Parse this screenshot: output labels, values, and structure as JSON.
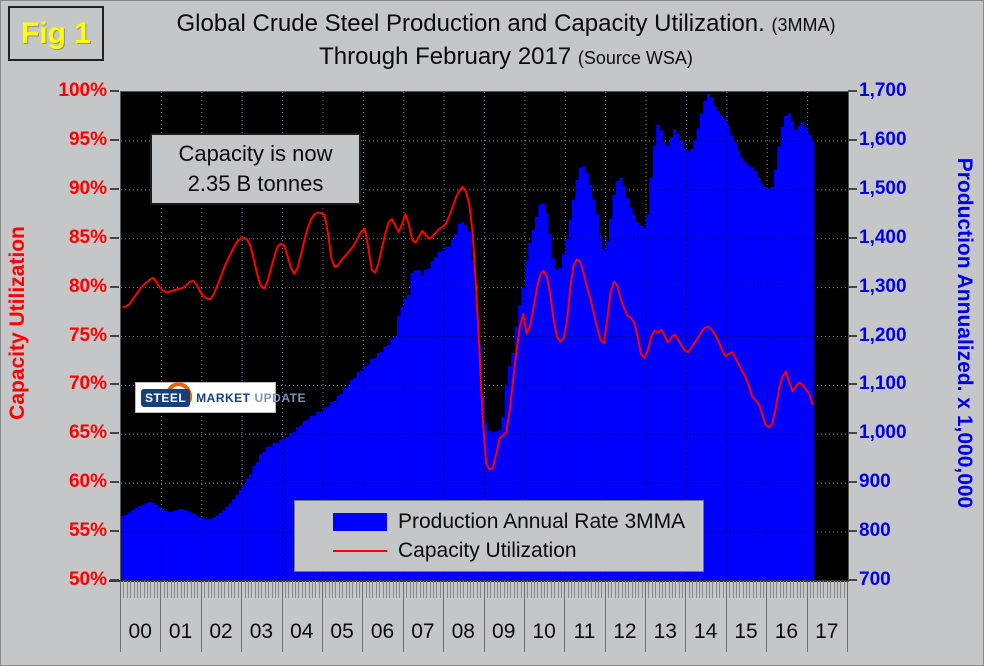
{
  "figure": {
    "badge": "Fig 1"
  },
  "title": {
    "line1": "Global Crude Steel Production and Capacity Utilization.",
    "line1_suffix": "(3MMA)",
    "line2": "Through February 2017",
    "line2_suffix": "(Source WSA)"
  },
  "annotation": {
    "line1": "Capacity is now",
    "line2": "2.35 B tonnes"
  },
  "logo": {
    "part1": "STEEL",
    "part2": "MARKET",
    "part3": "UPDATE"
  },
  "legend": {
    "items": [
      {
        "label": "Production Annual Rate 3MMA",
        "type": "area",
        "color": "#0000ff"
      },
      {
        "label": "Capacity Utilization",
        "type": "line",
        "color": "#ff0000"
      }
    ]
  },
  "colors": {
    "page_bg": "#c5c6c8",
    "plot_bg": "#000000",
    "production": "#0000ff",
    "utilization": "#ff0000",
    "left_axis_text": "#ff0000",
    "right_axis_text": "#0000ee",
    "badge_text": "#ffff00"
  },
  "chart_data": {
    "type": "area+line",
    "title": "Global Crude Steel Production and Capacity Utilization. (3MMA) Through February 2017 (Source WSA)",
    "x_start": "2000-01",
    "x_end": "2017-02",
    "months_per_cell": 12,
    "x_cells": 18,
    "x_tick_labels": [
      "00",
      "01",
      "02",
      "03",
      "04",
      "05",
      "06",
      "07",
      "08",
      "09",
      "10",
      "11",
      "12",
      "13",
      "14",
      "15",
      "16",
      "17"
    ],
    "grid": true,
    "legend_position": "inside-bottom",
    "left_axis": {
      "label": "Capacity Utilization",
      "min": 50,
      "max": 100,
      "ticks": [
        "100%",
        "95%",
        "90%",
        "85%",
        "80%",
        "75%",
        "70%",
        "65%",
        "60%",
        "55%",
        "50%"
      ]
    },
    "right_axis": {
      "label": "Production Annualized. x 1,000,000",
      "min": 700,
      "max": 1700,
      "ticks": [
        "1,700",
        "1,600",
        "1,500",
        "1,400",
        "1,300",
        "1,200",
        "1,100",
        "1,000",
        "900",
        "800",
        "700"
      ]
    },
    "series": [
      {
        "name": "Production Annual Rate 3MMA",
        "axis": "right",
        "type": "area",
        "color": "#0000ff",
        "values": [
          833,
          836,
          840,
          845,
          849,
          853,
          856,
          859,
          861,
          860,
          856,
          851,
          847,
          843,
          841,
          843,
          845,
          847,
          846,
          844,
          841,
          838,
          834,
          830,
          828,
          826,
          827,
          830,
          834,
          839,
          845,
          852,
          859,
          867,
          876,
          886,
          897,
          910,
          918,
          935,
          944,
          960,
          964,
          974,
          975,
          983,
          982,
          989,
          992,
          994,
          1003,
          1005,
          1015,
          1018,
          1028,
          1029,
          1038,
          1038,
          1046,
          1046,
          1055,
          1056,
          1066,
          1068,
          1079,
          1083,
          1095,
          1099,
          1111,
          1115,
          1127,
          1130,
          1140,
          1143,
          1154,
          1156,
          1166,
          1169,
          1180,
          1183,
          1194,
          1201,
          1242,
          1260,
          1277,
          1285,
          1330,
          1335,
          1336,
          1325,
          1336,
          1339,
          1354,
          1362,
          1373,
          1375,
          1383,
          1384,
          1398,
          1409,
          1430,
          1434,
          1428,
          1414,
          1357,
          1285,
          1183,
          1077,
          1022,
          1007,
          1004,
          1006,
          1009,
          1036,
          1100,
          1140,
          1166,
          1220,
          1264,
          1300,
          1355,
          1392,
          1418,
          1445,
          1470,
          1472,
          1452,
          1410,
          1360,
          1336,
          1340,
          1368,
          1400,
          1438,
          1480,
          1520,
          1545,
          1548,
          1535,
          1510,
          1480,
          1450,
          1405,
          1378,
          1395,
          1440,
          1490,
          1518,
          1525,
          1508,
          1483,
          1464,
          1450,
          1434,
          1426,
          1421,
          1448,
          1525,
          1590,
          1633,
          1622,
          1597,
          1590,
          1608,
          1624,
          1615,
          1601,
          1586,
          1579,
          1583,
          1602,
          1626,
          1656,
          1682,
          1696,
          1689,
          1671,
          1661,
          1651,
          1645,
          1631,
          1611,
          1598,
          1581,
          1566,
          1556,
          1549,
          1546,
          1538,
          1526,
          1513,
          1506,
          1502,
          1506,
          1541,
          1589,
          1629,
          1651,
          1656,
          1641,
          1623,
          1631,
          1639,
          1628,
          1613,
          1601
        ]
      },
      {
        "name": "Capacity Utilization",
        "axis": "left",
        "type": "line",
        "color": "#ff0000",
        "values": [
          78.0,
          78.1,
          78.3,
          78.8,
          79.3,
          79.8,
          80.2,
          80.5,
          80.8,
          81.0,
          80.6,
          80.0,
          79.7,
          79.5,
          79.6,
          79.7,
          79.8,
          79.9,
          80.0,
          80.3,
          80.6,
          80.7,
          80.3,
          79.6,
          79.1,
          78.9,
          78.8,
          79.3,
          80.1,
          81.0,
          81.9,
          82.7,
          83.4,
          84.1,
          84.7,
          85.0,
          85.1,
          84.9,
          84.2,
          82.8,
          81.3,
          80.2,
          79.9,
          80.6,
          81.9,
          83.1,
          84.2,
          84.5,
          84.3,
          83.2,
          82.0,
          81.4,
          82.1,
          83.4,
          84.9,
          86.1,
          87.0,
          87.5,
          87.7,
          87.6,
          87.4,
          85.5,
          83.0,
          82.1,
          82.3,
          82.8,
          83.2,
          83.6,
          84.0,
          84.5,
          85.2,
          85.8,
          86.0,
          84.0,
          81.8,
          81.5,
          82.5,
          84.0,
          85.5,
          86.7,
          87.0,
          86.3,
          85.7,
          86.5,
          87.5,
          86.5,
          84.9,
          84.6,
          85.2,
          85.8,
          85.4,
          85.0,
          85.2,
          85.6,
          86.0,
          86.2,
          86.5,
          87.3,
          88.2,
          89.2,
          89.9,
          90.3,
          89.8,
          88.5,
          85.5,
          80.0,
          73.5,
          66.5,
          62.0,
          61.4,
          61.6,
          63.0,
          64.6,
          64.9,
          65.2,
          67.5,
          70.5,
          73.5,
          76.0,
          77.3,
          75.3,
          76.0,
          77.8,
          79.8,
          81.3,
          81.7,
          81.2,
          79.4,
          76.8,
          75.0,
          74.5,
          74.8,
          76.5,
          80.0,
          82.3,
          82.9,
          82.6,
          81.4,
          80.0,
          78.8,
          77.3,
          75.9,
          74.6,
          74.3,
          76.8,
          79.6,
          80.6,
          80.2,
          78.8,
          77.9,
          77.1,
          76.9,
          76.4,
          75.0,
          73.2,
          72.8,
          73.6,
          74.9,
          75.6,
          75.4,
          75.7,
          75.1,
          74.4,
          74.9,
          75.2,
          74.7,
          74.1,
          73.6,
          73.4,
          73.9,
          74.4,
          74.9,
          75.5,
          75.9,
          76.0,
          75.7,
          75.2,
          74.5,
          73.7,
          73.0,
          73.2,
          73.4,
          72.8,
          72.2,
          71.5,
          70.9,
          70.0,
          68.9,
          68.5,
          68.1,
          67.1,
          66.0,
          65.7,
          66.1,
          67.6,
          69.6,
          70.9,
          71.4,
          70.4,
          69.4,
          69.9,
          70.3,
          70.0,
          69.6,
          69.1,
          68.0
        ]
      }
    ],
    "annotations": [
      "Capacity is now 2.35 B tonnes"
    ]
  }
}
